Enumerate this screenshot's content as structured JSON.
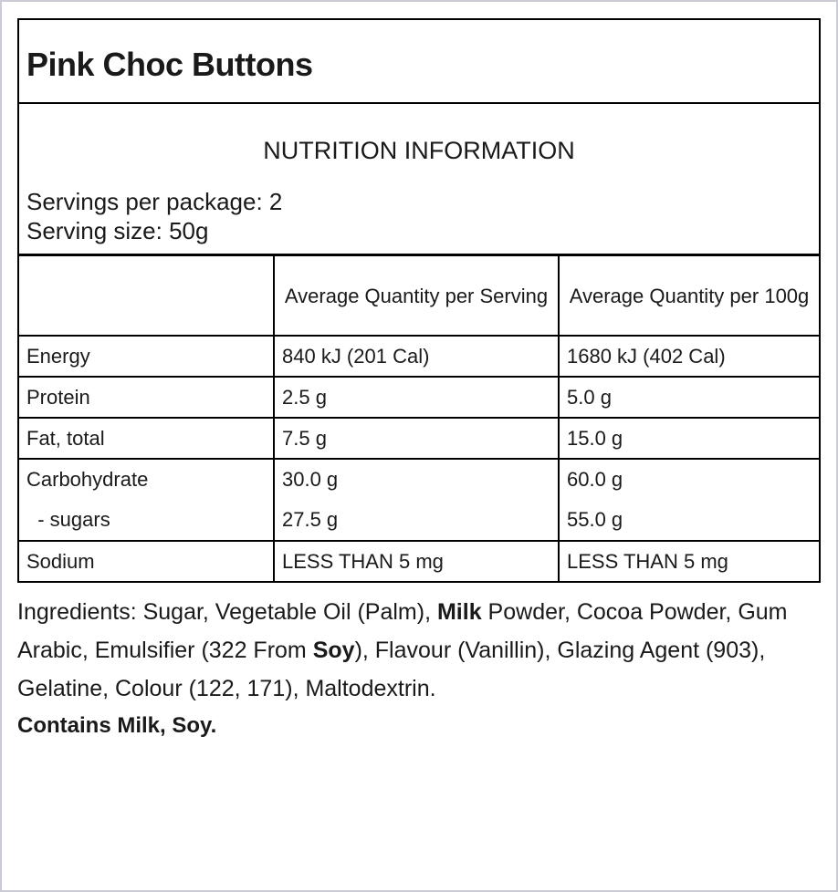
{
  "product_title": "Pink Choc Buttons",
  "nutrition": {
    "heading": "NUTRITION INFORMATION",
    "servings_per_package": "Servings per package: 2",
    "serving_size": "Serving size: 50g",
    "columns": [
      "",
      "Average Quantity per Serving",
      "Average Quantity per 100g"
    ],
    "rows": [
      [
        "Energy",
        "840 kJ (201 Cal)",
        "1680 kJ (402 Cal)"
      ],
      [
        "Protein",
        "2.5 g",
        "5.0 g"
      ],
      [
        "Fat, total",
        "7.5 g",
        "15.0 g"
      ],
      [
        "Carbohydrate",
        "30.0 g",
        "60.0 g"
      ],
      [
        "  - sugars",
        "27.5 g",
        "55.0 g"
      ],
      [
        "Sodium",
        "LESS THAN 5 mg",
        "LESS THAN 5 mg"
      ]
    ]
  },
  "ingredients": {
    "p1": "Ingredients: Sugar, Vegetable Oil (Palm), ",
    "b1": "Milk",
    "p2": " Powder, Cocoa Powder, Gum Arabic, Emulsifier (322 From ",
    "b2": "Soy",
    "p3": "), Flavour (Vanillin), Glazing Agent (903), Gelatine, Colour (122, 171), Maltodextrin."
  },
  "contains": "Contains Milk, Soy."
}
